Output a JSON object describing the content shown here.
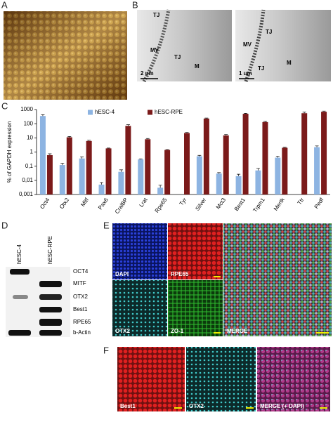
{
  "panels": {
    "a": "A",
    "b": "B",
    "c": "C",
    "d": "D",
    "e": "E",
    "f": "F"
  },
  "em": {
    "left": {
      "labels": [
        "TJ",
        "MV",
        "TJ",
        "M"
      ],
      "scale": "2 um"
    },
    "right": {
      "labels": [
        "TJ",
        "MV",
        "TJ",
        "M"
      ],
      "scale": "1 um"
    }
  },
  "blot": {
    "samples": [
      "hESC-4",
      "hESC-RPE"
    ],
    "bands": [
      "OCT4",
      "MITF",
      "OTX2",
      "Best1",
      "RPE65",
      "b-Actin"
    ]
  },
  "panel_e": [
    "DAPI",
    "RPE65",
    "OTX2",
    "ZO-1",
    "MERGE"
  ],
  "panel_f": [
    "Best1",
    "OTX2",
    "MERGE (+ DAPI)"
  ],
  "chart_data": {
    "type": "bar",
    "y_label": "% of GAPDH expression",
    "log_scale": true,
    "categories": [
      "Oct4",
      "Otx2",
      "Mitf",
      "Pax6",
      "CralBP",
      "Lrat",
      "Rpe65",
      "Tyr",
      "Silver",
      "Mct3",
      "Best1",
      "Trpm1",
      "Mertk",
      "Ttr",
      "Pedf"
    ],
    "series": [
      {
        "name": "hESC-4",
        "color": "#8db4e2",
        "values": [
          350,
          0.12,
          0.35,
          0.005,
          0.04,
          0.3,
          0.003,
          null,
          0.5,
          0.03,
          0.02,
          0.05,
          0.4,
          0.001,
          2.2
        ],
        "errors": [
          80,
          0.04,
          0.1,
          0.002,
          0.015,
          0.03,
          0.0015,
          null,
          0.08,
          0.005,
          0.007,
          0.02,
          0.1,
          null,
          0.5
        ]
      },
      {
        "name": "hESC-RPE",
        "color": "#7b1a1a",
        "values": [
          0.6,
          11,
          6,
          1.8,
          70,
          8,
          1.4,
          22,
          230,
          15,
          500,
          130,
          2,
          550,
          700
        ],
        "errors": [
          0.15,
          1.5,
          0.8,
          0.1,
          15,
          1,
          0.1,
          2,
          20,
          2,
          40,
          15,
          0.2,
          100,
          80
        ]
      }
    ],
    "ylim": [
      0.001,
      1000
    ],
    "yticks": [
      {
        "value": 0.001,
        "label": "0,001"
      },
      {
        "value": 0.01,
        "label": "0,01"
      },
      {
        "value": 0.1,
        "label": "0,1"
      },
      1,
      10,
      100,
      1000
    ],
    "legend": "top"
  }
}
